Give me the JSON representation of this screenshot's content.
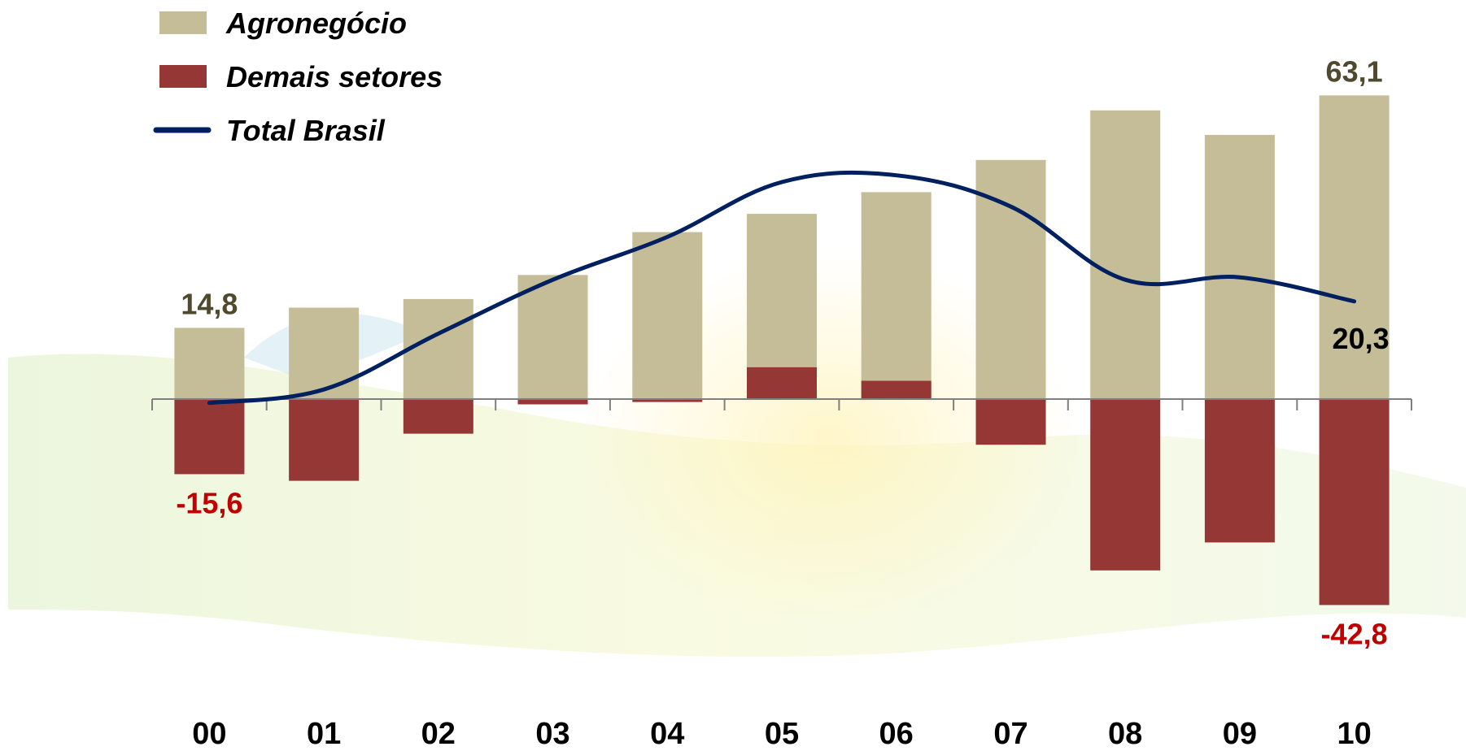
{
  "chart_data": {
    "type": "bar",
    "stacked": true,
    "categories": [
      "00",
      "01",
      "02",
      "03",
      "04",
      "05",
      "06",
      "07",
      "08",
      "09",
      "10"
    ],
    "series": [
      {
        "name": "Agronegócio",
        "kind": "bar",
        "color": "#c4bd97",
        "values": [
          14.8,
          19.0,
          20.8,
          25.8,
          34.7,
          38.5,
          43.0,
          49.7,
          60.0,
          54.9,
          63.1
        ]
      },
      {
        "name": "Demais setores",
        "kind": "bar",
        "color": "#953735",
        "values": [
          -15.6,
          -17.0,
          -7.2,
          -1.1,
          -0.6,
          6.6,
          3.8,
          -9.5,
          -35.6,
          -29.8,
          -42.8
        ]
      },
      {
        "name": "Total Brasil",
        "kind": "line",
        "color": "#002060",
        "values": [
          -0.8,
          2.0,
          13.6,
          24.8,
          33.7,
          45.1,
          46.5,
          40.0,
          24.8,
          25.3,
          20.3
        ]
      }
    ],
    "ylim": [
      -50,
      70
    ],
    "grid": false,
    "legend_position": "top-left",
    "data_labels": [
      {
        "series": 0,
        "index": 0,
        "text": "14,8",
        "color": "#4f4a2e",
        "position": "above"
      },
      {
        "series": 0,
        "index": 10,
        "text": "63,1",
        "color": "#4f4a2e",
        "position": "above"
      },
      {
        "series": 1,
        "index": 0,
        "text": "-15,6",
        "color": "#c00000",
        "position": "below"
      },
      {
        "series": 1,
        "index": 10,
        "text": "-42,8",
        "color": "#c00000",
        "position": "below"
      },
      {
        "series": 2,
        "index": 10,
        "text": "20,3",
        "color": "#000000",
        "position": "below"
      }
    ]
  }
}
